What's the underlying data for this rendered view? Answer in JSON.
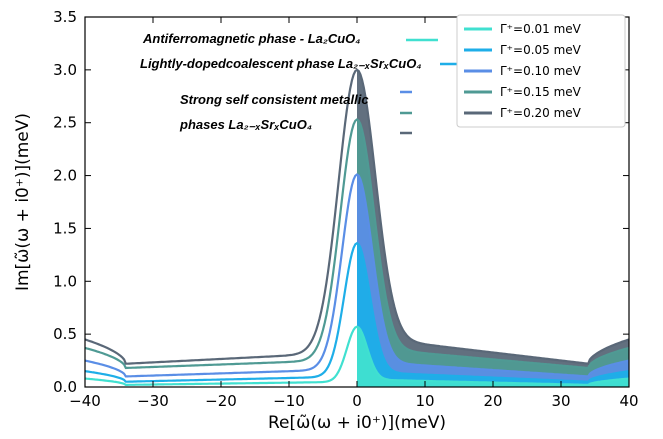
{
  "chart_data": {
    "type": "area",
    "xlabel": "Re[ω̃(ω + i0⁺)](meV)",
    "ylabel": "Im[ω̃(ω + i0⁺)](meV)",
    "xlim": [
      -40,
      40
    ],
    "ylim": [
      0,
      3.5
    ],
    "x_ticks": [
      -40,
      -30,
      -20,
      -10,
      0,
      10,
      20,
      30,
      40
    ],
    "y_ticks": [
      0.0,
      0.5,
      1.0,
      1.5,
      2.0,
      2.5,
      3.0,
      3.5
    ],
    "x_tick_labels": [
      "−40",
      "−30",
      "−20",
      "−10",
      "0",
      "10",
      "20",
      "30",
      "40"
    ],
    "y_tick_labels": [
      "0.0",
      "0.5",
      "1.0",
      "1.5",
      "2.0",
      "2.5",
      "3.0",
      "3.5"
    ],
    "legend_position": "top-right",
    "grid": false,
    "series": [
      {
        "name": "Γ⁺=0.01 meV",
        "color": "#40e0d0",
        "peak": 0.57,
        "tail": 0.05,
        "edge": 0.08,
        "dip": 0.02
      },
      {
        "name": "Γ⁺=0.05 meV",
        "color": "#1eaee8",
        "peak": 1.36,
        "tail": 0.1,
        "edge": 0.15,
        "dip": 0.05
      },
      {
        "name": "Γ⁺=0.10 meV",
        "color": "#5a8ee6",
        "peak": 2.01,
        "tail": 0.17,
        "edge": 0.25,
        "dip": 0.1
      },
      {
        "name": "Γ⁺=0.15 meV",
        "color": "#4f9a94",
        "peak": 2.53,
        "tail": 0.26,
        "edge": 0.37,
        "dip": 0.18
      },
      {
        "name": "Γ⁺=0.20 meV",
        "color": "#5a6878",
        "peak": 3.0,
        "tail": 0.33,
        "edge": 0.45,
        "dip": 0.22
      }
    ],
    "annotations": [
      {
        "text": "Antiferromagnetic phase - La₂CuO₄",
        "color": "#40e0d0"
      },
      {
        "text": "Lightly-dopedcoalescent phase La₂₋ₓSrₓCuO₄",
        "color": "#1eaee8"
      },
      {
        "text": "Strong self consistent metallic",
        "color": "#5a8ee6"
      },
      {
        "text": "phases  La₂₋ₓSrₓCuO₄",
        "color": "#4f9a94"
      },
      {
        "text": "",
        "color": "#5a6878"
      }
    ]
  }
}
